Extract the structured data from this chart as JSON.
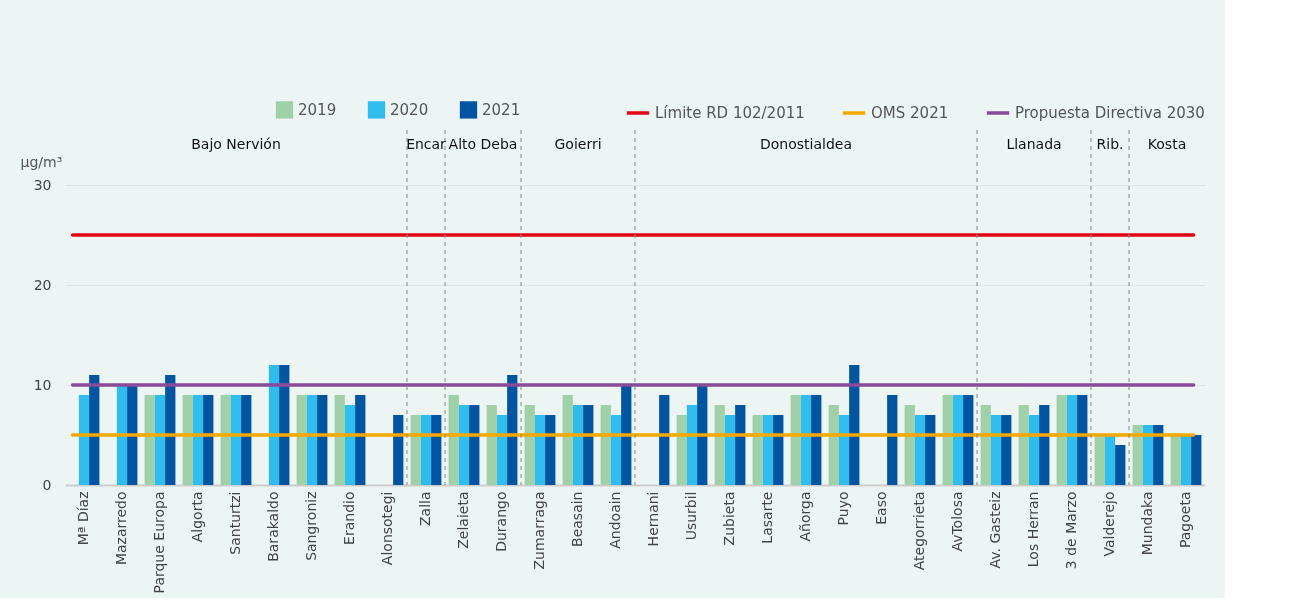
{
  "chart_data": {
    "type": "bar",
    "ylabel": "µg/m³",
    "categories": [
      "Mª Díaz",
      "Mazarredo",
      "Parque Europa",
      "Algorta",
      "Santurtzi",
      "Barakaldo",
      "Sangroniz",
      "Erandio",
      "Alonsotegi",
      "Zalla",
      "Zelaieta",
      "Durango",
      "Zumarraga",
      "Beasain",
      "Andoain",
      "Hernani",
      "Usurbil",
      "Zubieta",
      "Lasarte",
      "Añorga",
      "Puyo",
      "Easo",
      "Ategorrieta",
      "AvTolosa",
      "Av. Gasteiz",
      "Los Herran",
      "3 de Marzo",
      "Valderejo",
      "Mundaka",
      "Pagoeta"
    ],
    "series": [
      {
        "name": "2019",
        "color": "#a0d0a8",
        "values": [
          null,
          null,
          9,
          9,
          9,
          null,
          9,
          9,
          null,
          7,
          9,
          8,
          8,
          9,
          8,
          null,
          7,
          8,
          7,
          9,
          8,
          null,
          8,
          9,
          8,
          8,
          9,
          5,
          6,
          5
        ]
      },
      {
        "name": "2020",
        "color": "#30bced",
        "values": [
          9,
          10,
          9,
          9,
          9,
          12,
          9,
          8,
          null,
          7,
          8,
          7,
          7,
          8,
          7,
          null,
          8,
          7,
          7,
          9,
          7,
          null,
          7,
          9,
          7,
          7,
          9,
          5,
          6,
          5
        ]
      },
      {
        "name": "2021",
        "color": "#0054a0",
        "values": [
          11,
          10,
          11,
          9,
          9,
          12,
          9,
          9,
          7,
          7,
          8,
          11,
          7,
          8,
          10,
          9,
          10,
          8,
          7,
          9,
          12,
          9,
          7,
          9,
          7,
          8,
          9,
          4,
          6,
          5
        ]
      }
    ],
    "ylim": [
      0,
      30
    ],
    "yticks": [
      0,
      10,
      20,
      30
    ],
    "grid": "y",
    "legend": "top",
    "ref_lines": [
      {
        "axis": "y",
        "value": 25,
        "label": "Límite RD 102/2011",
        "color": "#e30613"
      },
      {
        "axis": "y",
        "value": 5,
        "label": "OMS 2021",
        "color": "#f6a800"
      },
      {
        "axis": "y",
        "value": 10,
        "label": "Propuesta Directiva 2030",
        "color": "#8a4a9a"
      }
    ],
    "annotations": [
      "Bajo Nervión",
      "Encar",
      "Alto Deba",
      "Goierri",
      "Donostialdea",
      "Llanada",
      "Rib.",
      "Kosta"
    ]
  }
}
